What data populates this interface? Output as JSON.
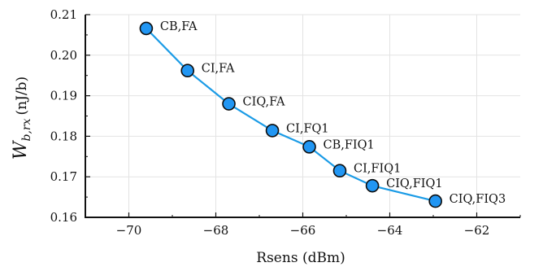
{
  "chart_data": {
    "type": "line",
    "xlabel": "Rsens (dBm)",
    "ylabel": "W_{b,rx} (nJ/b)",
    "ylabel_parts": {
      "main": "W",
      "sub": "b,rx",
      "unit": "(nJ/b)"
    },
    "xlim": [
      -71,
      -61
    ],
    "ylim": [
      0.16,
      0.21
    ],
    "x_ticks": [
      -70,
      -68,
      -66,
      -64,
      -62
    ],
    "y_ticks": [
      0.16,
      0.17,
      0.18,
      0.19,
      0.2,
      0.21
    ],
    "x_tick_labels": [
      "−70",
      "−68",
      "−66",
      "−64",
      "−62"
    ],
    "y_tick_labels": [
      "0.16",
      "0.17",
      "0.18",
      "0.19",
      "0.20",
      "0.21"
    ],
    "grid": true,
    "series": [
      {
        "color": "#2196F3",
        "line_color": "#1a9be6",
        "points": [
          {
            "x": -69.6,
            "y": 0.2066,
            "label": "CB,FA"
          },
          {
            "x": -68.65,
            "y": 0.1962,
            "label": "CI,FA"
          },
          {
            "x": -67.7,
            "y": 0.188,
            "label": "CIQ,FA"
          },
          {
            "x": -66.7,
            "y": 0.1814,
            "label": "CI,FQ1"
          },
          {
            "x": -65.85,
            "y": 0.1774,
            "label": "CB,FIQ1"
          },
          {
            "x": -65.15,
            "y": 0.1715,
            "label": "CI,FIQ1"
          },
          {
            "x": -64.4,
            "y": 0.1678,
            "label": "CIQ,FIQ1"
          },
          {
            "x": -62.95,
            "y": 0.164,
            "label": "CIQ,FIQ3"
          }
        ]
      }
    ]
  }
}
